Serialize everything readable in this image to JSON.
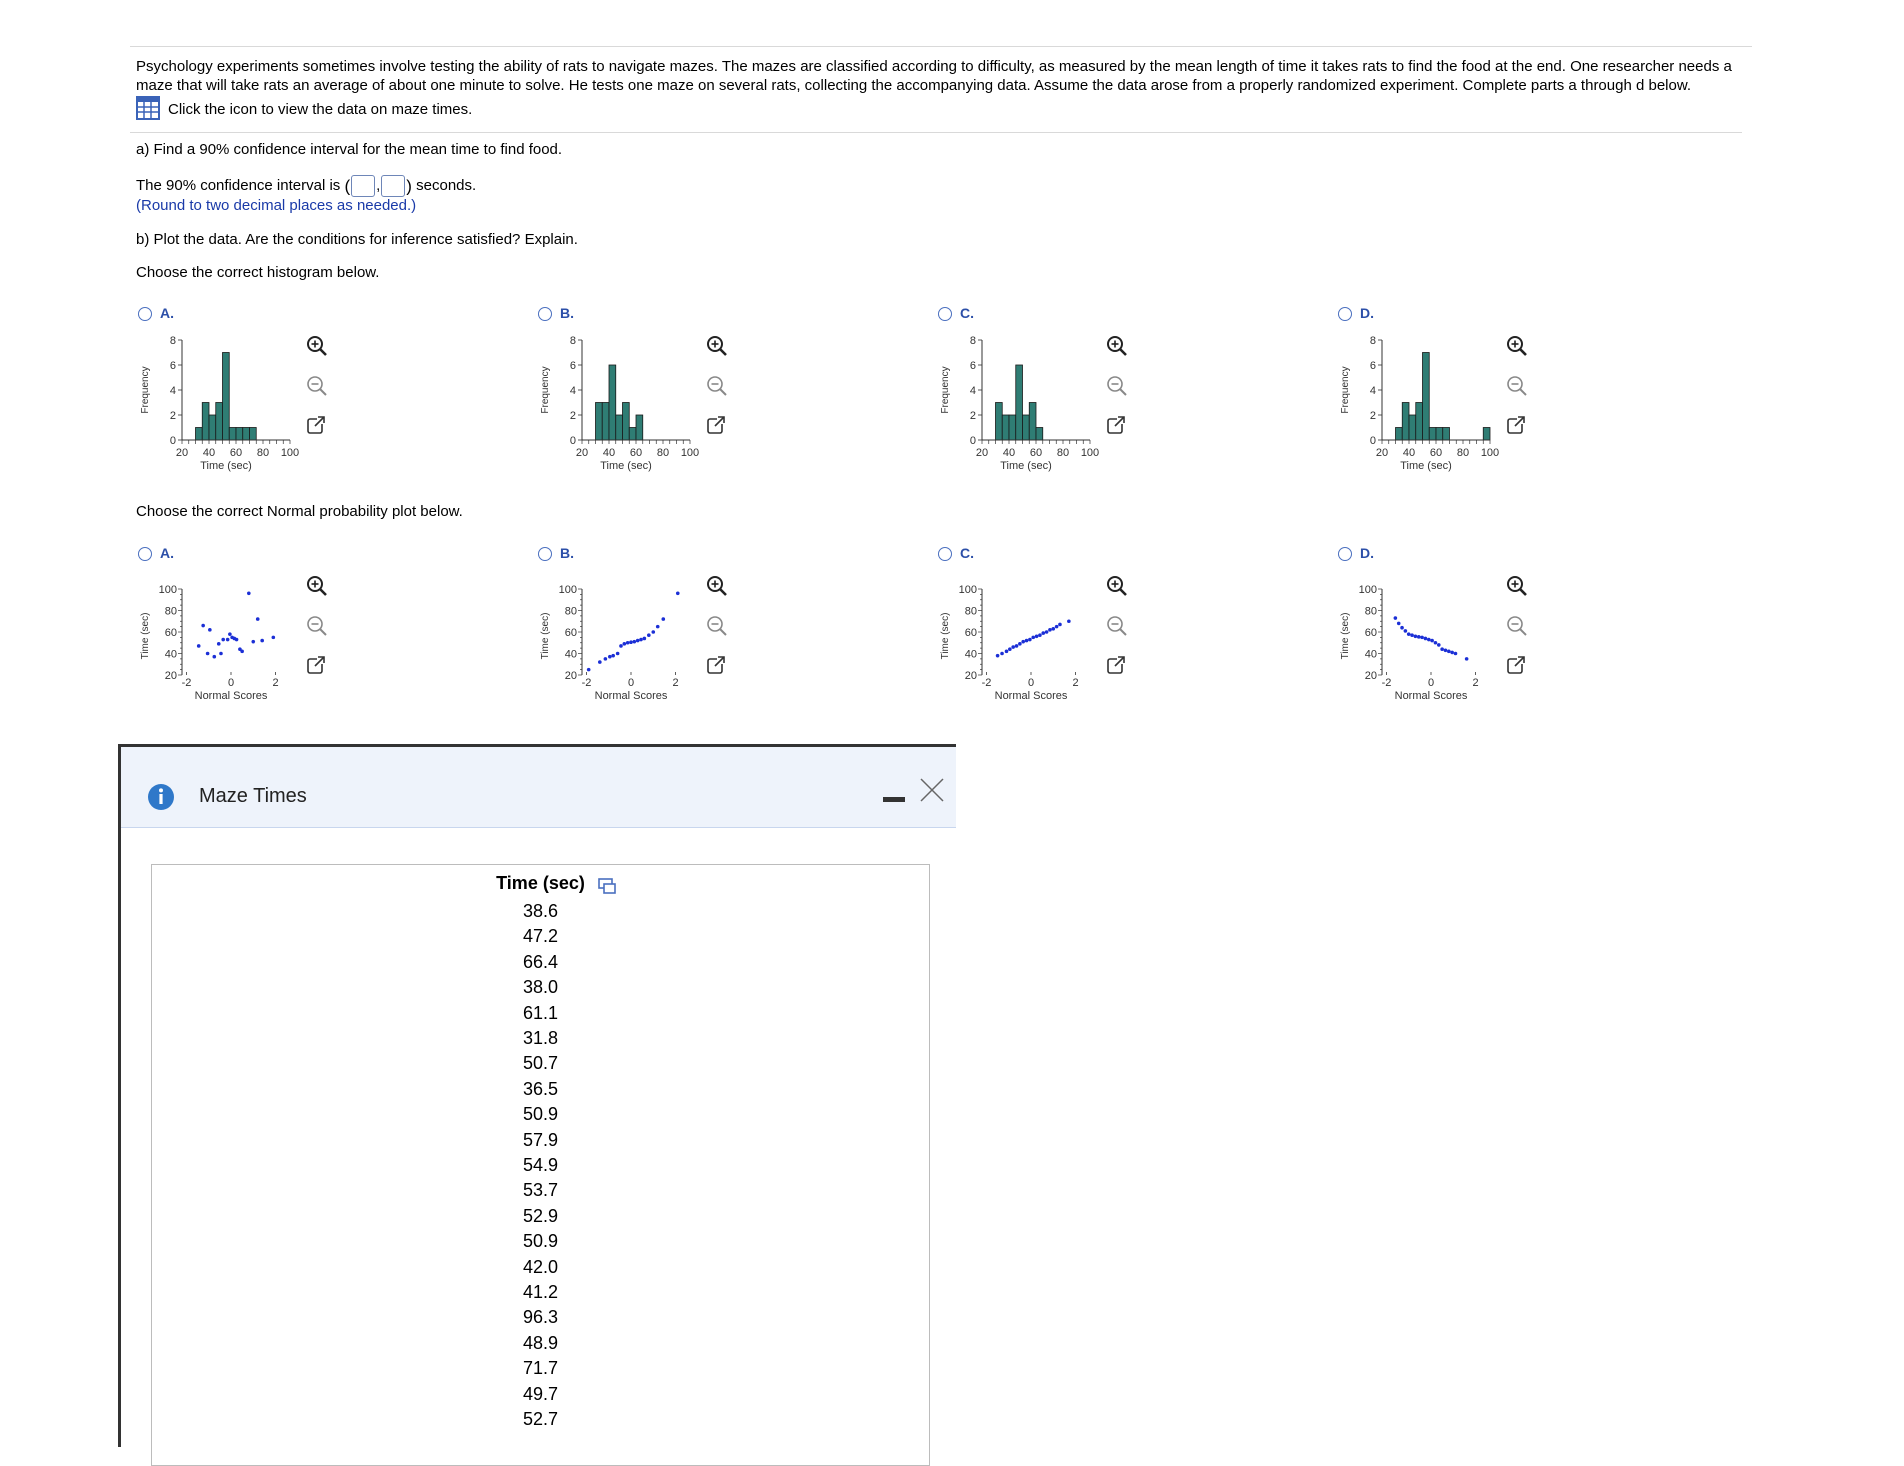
{
  "question": {
    "intro_line1": "Psychology experiments sometimes involve testing the ability of rats to navigate mazes. The mazes are classified according to difficulty, as measured by the mean length of time it takes rats to find the food at the end. One researcher needs a",
    "intro_line2": "maze that will take rats an average of about one minute to solve. He tests one maze on several rats, collecting the accompanying data. Assume the data arose from a properly randomized experiment. Complete parts a through d below.",
    "data_link": "Click the icon to view the data on maze times.",
    "part_a": "a) Find a 90% confidence interval for the mean time to find food.",
    "ci_prefix": "The 90% confidence interval is",
    "ci_suffix": "seconds.",
    "ci_comma": ",",
    "round_note": "(Round to two decimal places as needed.)",
    "part_b": "b) Plot the data. Are the conditions for inference satisfied? Explain.",
    "histogram_prompt": "Choose the correct histogram below.",
    "npp_prompt": "Choose the correct Normal probability plot below."
  },
  "icons": {
    "zoom_in": "zoom-in-icon",
    "zoom_out": "zoom-out-icon",
    "popout": "external-link-icon",
    "data_table": "table-icon",
    "info": "info-icon",
    "minimize": "minimize-icon",
    "close": "close-icon",
    "copy": "copy-icon"
  },
  "colors": {
    "bar_fill": "#2f7d74",
    "point": "#1b2fd6",
    "accent": "#2c4fa8"
  },
  "histogram_options": [
    {
      "letter": "A."
    },
    {
      "letter": "B."
    },
    {
      "letter": "C."
    },
    {
      "letter": "D."
    }
  ],
  "npp_options": [
    {
      "letter": "A."
    },
    {
      "letter": "B."
    },
    {
      "letter": "C."
    },
    {
      "letter": "D."
    }
  ],
  "chart_data": [
    {
      "id": "hist-A",
      "type": "bar",
      "ylabel": "Frequency",
      "xlabel": "Time (sec)",
      "xlim": [
        20,
        100
      ],
      "ylim": [
        0,
        8
      ],
      "bin_width": 5,
      "xticks": [
        "20",
        "40",
        "60",
        "80",
        "100"
      ],
      "yticks": [
        "0",
        "2",
        "4",
        "6",
        "8"
      ],
      "bins": [
        {
          "x": 30,
          "value": 1
        },
        {
          "x": 35,
          "value": 3
        },
        {
          "x": 40,
          "value": 2
        },
        {
          "x": 45,
          "value": 3
        },
        {
          "x": 50,
          "value": 7
        },
        {
          "x": 55,
          "value": 1
        },
        {
          "x": 60,
          "value": 1
        },
        {
          "x": 65,
          "value": 1
        },
        {
          "x": 70,
          "value": 1
        }
      ]
    },
    {
      "id": "hist-B",
      "type": "bar",
      "ylabel": "Frequency",
      "xlabel": "Time (sec)",
      "xlim": [
        20,
        100
      ],
      "ylim": [
        0,
        8
      ],
      "bin_width": 5,
      "xticks": [
        "20",
        "40",
        "60",
        "80",
        "100"
      ],
      "yticks": [
        "0",
        "2",
        "4",
        "6",
        "8"
      ],
      "bins": [
        {
          "x": 30,
          "value": 3
        },
        {
          "x": 35,
          "value": 3
        },
        {
          "x": 40,
          "value": 6
        },
        {
          "x": 45,
          "value": 2
        },
        {
          "x": 50,
          "value": 3
        },
        {
          "x": 55,
          "value": 1
        },
        {
          "x": 60,
          "value": 2
        }
      ]
    },
    {
      "id": "hist-C",
      "type": "bar",
      "ylabel": "Frequency",
      "xlabel": "Time (sec)",
      "xlim": [
        20,
        100
      ],
      "ylim": [
        0,
        8
      ],
      "bin_width": 5,
      "xticks": [
        "20",
        "40",
        "60",
        "80",
        "100"
      ],
      "yticks": [
        "0",
        "2",
        "4",
        "6",
        "8"
      ],
      "bins": [
        {
          "x": 30,
          "value": 3
        },
        {
          "x": 35,
          "value": 2
        },
        {
          "x": 40,
          "value": 2
        },
        {
          "x": 45,
          "value": 6
        },
        {
          "x": 50,
          "value": 2
        },
        {
          "x": 55,
          "value": 3
        },
        {
          "x": 60,
          "value": 1
        }
      ]
    },
    {
      "id": "hist-D",
      "type": "bar",
      "ylabel": "Frequency",
      "xlabel": "Time (sec)",
      "xlim": [
        20,
        100
      ],
      "ylim": [
        0,
        8
      ],
      "bin_width": 5,
      "xticks": [
        "20",
        "40",
        "60",
        "80",
        "100"
      ],
      "yticks": [
        "0",
        "2",
        "4",
        "6",
        "8"
      ],
      "bins": [
        {
          "x": 30,
          "value": 1
        },
        {
          "x": 35,
          "value": 3
        },
        {
          "x": 40,
          "value": 2
        },
        {
          "x": 45,
          "value": 3
        },
        {
          "x": 50,
          "value": 7
        },
        {
          "x": 55,
          "value": 1
        },
        {
          "x": 60,
          "value": 1
        },
        {
          "x": 65,
          "value": 1
        },
        {
          "x": 95,
          "value": 1
        }
      ]
    },
    {
      "id": "npp-A",
      "type": "scatter",
      "ylabel": "Time (sec)",
      "xlabel": "Normal Scores",
      "xlim": [
        -2.2,
        2.2
      ],
      "ylim": [
        20,
        100
      ],
      "xticks": [
        "-2",
        "0",
        "2"
      ],
      "yticks": [
        "20",
        "40",
        "60",
        "80",
        "100"
      ],
      "points": [
        [
          -1.45,
          47
        ],
        [
          -1.25,
          66
        ],
        [
          -1.05,
          40
        ],
        [
          -0.95,
          62
        ],
        [
          -0.75,
          37
        ],
        [
          -0.55,
          49
        ],
        [
          -0.45,
          40
        ],
        [
          -0.35,
          53
        ],
        [
          -0.15,
          53
        ],
        [
          -0.05,
          58
        ],
        [
          0.05,
          55
        ],
        [
          0.15,
          54
        ],
        [
          0.25,
          53
        ],
        [
          0.4,
          44
        ],
        [
          0.5,
          42
        ],
        [
          0.8,
          96
        ],
        [
          1.0,
          51
        ],
        [
          1.2,
          72
        ],
        [
          1.4,
          52
        ],
        [
          1.9,
          55
        ]
      ]
    },
    {
      "id": "npp-B",
      "type": "scatter",
      "ylabel": "Time (sec)",
      "xlabel": "Normal Scores",
      "xlim": [
        -2.2,
        2.2
      ],
      "ylim": [
        20,
        100
      ],
      "xticks": [
        "-2",
        "0",
        "2"
      ],
      "yticks": [
        "20",
        "40",
        "60",
        "80",
        "100"
      ],
      "points": [
        [
          -1.9,
          25
        ],
        [
          -1.4,
          32
        ],
        [
          -1.15,
          35
        ],
        [
          -0.95,
          37
        ],
        [
          -0.8,
          38
        ],
        [
          -0.6,
          40
        ],
        [
          -0.45,
          47
        ],
        [
          -0.3,
          49
        ],
        [
          -0.15,
          50
        ],
        [
          0.0,
          50.5
        ],
        [
          0.15,
          51
        ],
        [
          0.3,
          52
        ],
        [
          0.45,
          53
        ],
        [
          0.6,
          54
        ],
        [
          0.8,
          57
        ],
        [
          1.0,
          60
        ],
        [
          1.2,
          65
        ],
        [
          1.45,
          72
        ],
        [
          2.1,
          96
        ]
      ]
    },
    {
      "id": "npp-C",
      "type": "scatter",
      "ylabel": "Time (sec)",
      "xlabel": "Normal Scores",
      "xlim": [
        -2.2,
        2.2
      ],
      "ylim": [
        20,
        100
      ],
      "xticks": [
        "-2",
        "0",
        "2"
      ],
      "yticks": [
        "20",
        "40",
        "60",
        "80",
        "100"
      ],
      "points": [
        [
          -1.5,
          38
        ],
        [
          -1.3,
          40
        ],
        [
          -1.1,
          42
        ],
        [
          -0.95,
          44
        ],
        [
          -0.8,
          46
        ],
        [
          -0.65,
          47
        ],
        [
          -0.5,
          49
        ],
        [
          -0.35,
          51
        ],
        [
          -0.2,
          52
        ],
        [
          -0.05,
          53
        ],
        [
          0.1,
          55
        ],
        [
          0.25,
          56
        ],
        [
          0.4,
          57
        ],
        [
          0.55,
          59
        ],
        [
          0.7,
          60
        ],
        [
          0.85,
          62
        ],
        [
          1.0,
          63
        ],
        [
          1.15,
          65
        ],
        [
          1.3,
          67
        ],
        [
          1.7,
          70
        ]
      ]
    },
    {
      "id": "npp-D",
      "type": "scatter",
      "ylabel": "Time (sec)",
      "xlabel": "Normal Scores",
      "xlim": [
        -2.2,
        2.2
      ],
      "ylim": [
        20,
        100
      ],
      "xticks": [
        "-2",
        "0",
        "2"
      ],
      "yticks": [
        "20",
        "40",
        "60",
        "80",
        "100"
      ],
      "points": [
        [
          -1.6,
          73
        ],
        [
          -1.45,
          68
        ],
        [
          -1.3,
          64
        ],
        [
          -1.15,
          61
        ],
        [
          -1.0,
          58
        ],
        [
          -0.85,
          57
        ],
        [
          -0.7,
          56
        ],
        [
          -0.55,
          55.5
        ],
        [
          -0.4,
          55
        ],
        [
          -0.25,
          54
        ],
        [
          -0.1,
          53
        ],
        [
          0.05,
          52
        ],
        [
          0.2,
          50
        ],
        [
          0.35,
          48
        ],
        [
          0.5,
          44
        ],
        [
          0.65,
          43
        ],
        [
          0.8,
          42
        ],
        [
          0.95,
          41
        ],
        [
          1.1,
          40
        ],
        [
          1.6,
          35
        ]
      ]
    }
  ],
  "panel": {
    "title": "Maze Times",
    "column_header": "Time (sec)",
    "values": [
      "38.6",
      "47.2",
      "66.4",
      "38.0",
      "61.1",
      "31.8",
      "50.7",
      "36.5",
      "50.9",
      "57.9",
      "54.9",
      "53.7",
      "52.9",
      "50.9",
      "42.0",
      "41.2",
      "96.3",
      "48.9",
      "71.7",
      "49.7",
      "52.7"
    ]
  }
}
